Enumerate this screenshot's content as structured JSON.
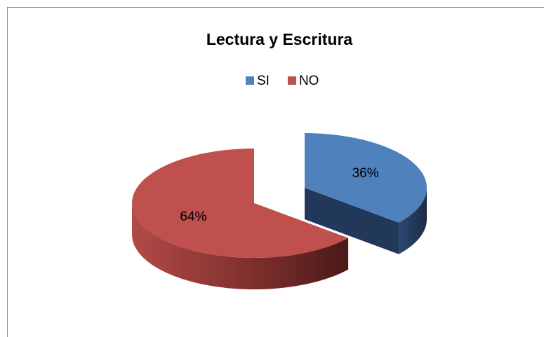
{
  "chart_data": {
    "type": "pie",
    "title": "Lectura y Escritura",
    "categories": [
      "SI",
      "NO"
    ],
    "values": [
      36,
      64
    ],
    "value_labels": [
      "36%",
      "64%"
    ],
    "colors": [
      "#4f81bd",
      "#c0504d"
    ],
    "legend": "top"
  }
}
